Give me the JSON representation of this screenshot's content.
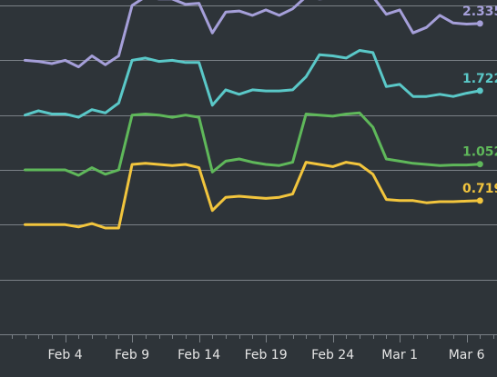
{
  "chart_data": {
    "type": "line",
    "title": "",
    "xlabel": "",
    "ylabel": "",
    "ylim": [
      -0.5,
      2.55
    ],
    "yticks": [
      0,
      0.5,
      1,
      1.5,
      2,
      2.5
    ],
    "grid": true,
    "x_start": "Feb 1",
    "x_tick_labels": [
      {
        "day": 4,
        "label": "Feb 4"
      },
      {
        "day": 9,
        "label": "Feb 9"
      },
      {
        "day": 14,
        "label": "Feb 14"
      },
      {
        "day": 19,
        "label": "Feb 19"
      },
      {
        "day": 24,
        "label": "Feb 24"
      },
      {
        "day": 29,
        "label": "Mar 1"
      },
      {
        "day": 34,
        "label": "Mar 6"
      }
    ],
    "x": [
      1,
      2,
      3,
      4,
      5,
      6,
      7,
      8,
      9,
      10,
      11,
      12,
      13,
      14,
      15,
      16,
      17,
      18,
      19,
      20,
      21,
      22,
      23,
      24,
      25,
      26,
      27,
      28,
      29,
      30,
      31,
      32,
      33,
      34,
      35
    ],
    "series": [
      {
        "color": "#a59fd9",
        "end_label": "2.335",
        "values": [
          2.0,
          1.99,
          1.97,
          2.0,
          1.94,
          2.04,
          1.96,
          2.04,
          2.5,
          2.58,
          2.56,
          2.56,
          2.51,
          2.52,
          2.25,
          2.44,
          2.45,
          2.41,
          2.46,
          2.41,
          2.47,
          2.58,
          2.56,
          2.57,
          2.61,
          2.6,
          2.58,
          2.42,
          2.46,
          2.25,
          2.3,
          2.41,
          2.34,
          2.33,
          2.335
        ]
      },
      {
        "color": "#5ac8c8",
        "end_label": "1.722",
        "values": [
          1.5,
          1.54,
          1.51,
          1.51,
          1.48,
          1.55,
          1.52,
          1.61,
          2.0,
          2.02,
          1.99,
          2.0,
          1.98,
          1.98,
          1.59,
          1.73,
          1.69,
          1.73,
          1.72,
          1.72,
          1.73,
          1.85,
          2.05,
          2.04,
          2.02,
          2.09,
          2.07,
          1.76,
          1.78,
          1.67,
          1.67,
          1.69,
          1.67,
          1.7,
          1.722
        ]
      },
      {
        "color": "#5fb85a",
        "end_label": "1.052",
        "values": [
          1.0,
          1.0,
          1.0,
          1.0,
          0.95,
          1.02,
          0.96,
          1.0,
          1.5,
          1.51,
          1.5,
          1.48,
          1.5,
          1.48,
          0.98,
          1.08,
          1.1,
          1.07,
          1.05,
          1.04,
          1.07,
          1.51,
          1.5,
          1.49,
          1.51,
          1.52,
          1.39,
          1.1,
          1.08,
          1.06,
          1.05,
          1.04,
          1.045,
          1.045,
          1.052
        ]
      },
      {
        "color": "#f2c53d",
        "end_label": "0.719",
        "values": [
          0.5,
          0.5,
          0.5,
          0.5,
          0.48,
          0.51,
          0.47,
          0.47,
          1.05,
          1.06,
          1.05,
          1.04,
          1.05,
          1.02,
          0.63,
          0.75,
          0.76,
          0.75,
          0.74,
          0.75,
          0.78,
          1.07,
          1.05,
          1.03,
          1.07,
          1.05,
          0.96,
          0.73,
          0.72,
          0.72,
          0.7,
          0.71,
          0.71,
          0.715,
          0.719
        ]
      }
    ]
  }
}
